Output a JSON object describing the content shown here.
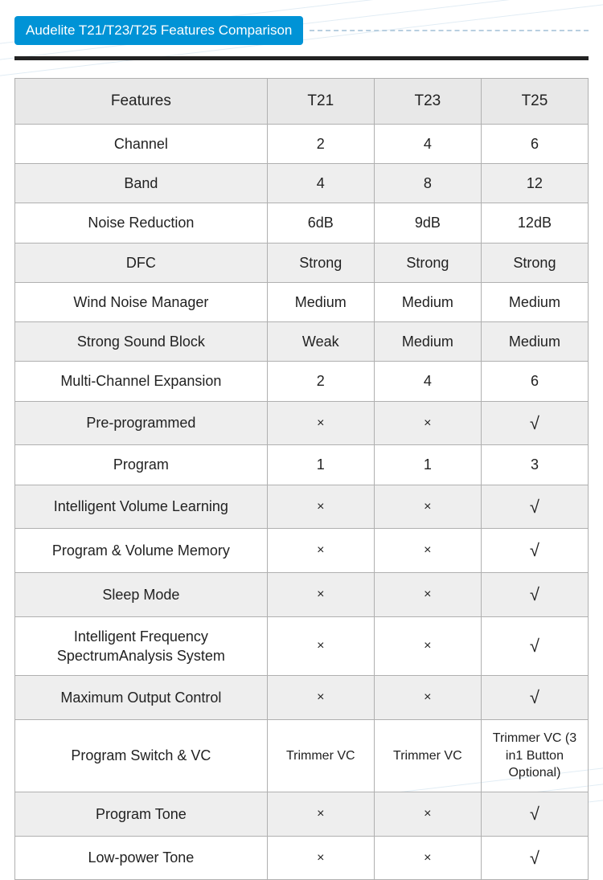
{
  "title": "Audelite T21/T23/T25 Features Comparison",
  "colors": {
    "pill_bg": "#0093d6",
    "pill_text": "#ffffff",
    "hr": "#222222",
    "border": "#b0b0b0",
    "header_bg": "#e8e8e8",
    "shaded_bg": "#eeeeee",
    "dash": "#b8cfe0",
    "bgline": "#d5e5f0"
  },
  "symbols": {
    "check": "√",
    "cross": "×"
  },
  "columns": [
    "Features",
    "T21",
    "T23",
    "T25"
  ],
  "column_widths_pct": [
    44,
    18.666,
    18.666,
    18.666
  ],
  "rows": [
    {
      "feature": "Channel",
      "t21": "2",
      "t23": "4",
      "t25": "6",
      "shaded": false
    },
    {
      "feature": "Band",
      "t21": "4",
      "t23": "8",
      "t25": "12",
      "shaded": true
    },
    {
      "feature": "Noise Reduction",
      "t21": "6dB",
      "t23": "9dB",
      "t25": "12dB",
      "shaded": false
    },
    {
      "feature": "DFC",
      "t21": "Strong",
      "t23": "Strong",
      "t25": "Strong",
      "shaded": true
    },
    {
      "feature": "Wind Noise Manager",
      "t21": "Medium",
      "t23": "Medium",
      "t25": "Medium",
      "shaded": false
    },
    {
      "feature": "Strong Sound Block",
      "t21": "Weak",
      "t23": "Medium",
      "t25": "Medium",
      "shaded": true
    },
    {
      "feature": "Multi-Channel Expansion",
      "t21": "2",
      "t23": "4",
      "t25": "6",
      "shaded": false
    },
    {
      "feature": "Pre-programmed",
      "t21": "×",
      "t23": "×",
      "t25": "√",
      "shaded": true
    },
    {
      "feature": "Program",
      "t21": "1",
      "t23": "1",
      "t25": "3",
      "shaded": false
    },
    {
      "feature": "Intelligent Volume Learning",
      "t21": "×",
      "t23": "×",
      "t25": "√",
      "shaded": true
    },
    {
      "feature": "Program & Volume Memory",
      "t21": "×",
      "t23": "×",
      "t25": "√",
      "shaded": false
    },
    {
      "feature": "Sleep Mode",
      "t21": "×",
      "t23": "×",
      "t25": "√",
      "shaded": true
    },
    {
      "feature": "Intelligent Frequency SpectrumAnalysis System",
      "t21": "×",
      "t23": "×",
      "t25": "√",
      "shaded": false
    },
    {
      "feature": "Maximum Output Control",
      "t21": "×",
      "t23": "×",
      "t25": "√",
      "shaded": true
    },
    {
      "feature": "Program Switch & VC",
      "t21": "Trimmer VC",
      "t23": "Trimmer VC",
      "t25": "Trimmer VC (3 in1 Button Optional)",
      "shaded": false,
      "small": true
    },
    {
      "feature": "Program Tone",
      "t21": "×",
      "t23": "×",
      "t25": "√",
      "shaded": true
    },
    {
      "feature": "Low-power Tone",
      "t21": "×",
      "t23": "×",
      "t25": "√",
      "shaded": false
    }
  ],
  "typography": {
    "title_fontsize": 17,
    "header_fontsize": 19,
    "cell_fontsize": 18,
    "small_cell_fontsize": 16
  }
}
